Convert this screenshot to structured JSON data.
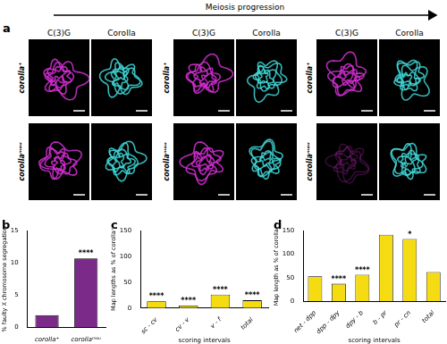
{
  "panel_a": {
    "title": "a",
    "arrow_label": "Meiosis progression",
    "groups": [
      {
        "columns": [
          {
            "label": "C(3)G",
            "color": "#d42fd4"
          },
          {
            "label": "Corolla",
            "color": "#3fd6d6"
          }
        ],
        "rows": [
          "corolla⁺",
          "corollaᵐᵃᵘ"
        ]
      },
      {
        "columns": [
          {
            "label": "C(3)G",
            "color": "#d42fd4"
          },
          {
            "label": "Corolla",
            "color": "#3fd6d6"
          }
        ],
        "rows": [
          "corolla⁺",
          "corollaᵐᵃᵘ"
        ]
      },
      {
        "columns": [
          {
            "label": "C(3)G",
            "color": "#d42fd4"
          },
          {
            "label": "Corolla",
            "color": "#3fd6d6"
          }
        ],
        "rows": [
          "corolla⁺",
          "corollaᵐᵃᵘ"
        ]
      }
    ]
  },
  "chart_data": [
    {
      "type": "bar",
      "title": "b",
      "categories": [
        "corolla⁺",
        "corollaᵐᵃᵘ"
      ],
      "values": [
        1.9,
        10.7
      ],
      "color": "#7b2a8a",
      "y_label": "% faulty X chromosome segregation",
      "ylim": [
        0,
        15
      ],
      "yticks": [
        0,
        5,
        10,
        15
      ],
      "annotations": [
        null,
        "****"
      ],
      "grid": false
    },
    {
      "type": "bar",
      "title": "c",
      "categories": [
        "sc - cv",
        "cv - v",
        "v - f",
        "total"
      ],
      "values": [
        13,
        5,
        26,
        15
      ],
      "color": "#f5dc12",
      "y_label": "Map lengths as % of corolla⁺",
      "x_label": "scoring intervals",
      "ylim": [
        0,
        150
      ],
      "yticks": [
        0,
        50,
        100,
        150
      ],
      "annotations": [
        "****",
        "****",
        "****",
        "****"
      ],
      "grid": false
    },
    {
      "type": "bar",
      "title": "d",
      "categories": [
        "net - dpp",
        "dpp - dpy",
        "dpy - b",
        "b - pr",
        "pr - cn",
        "total"
      ],
      "values": [
        53,
        37,
        56,
        141,
        132,
        62
      ],
      "color": "#f5dc12",
      "y_label": "Map length as % of corolla⁺",
      "x_label": "scoring intervals",
      "ylim": [
        0,
        150
      ],
      "yticks": [
        0,
        50,
        100,
        150
      ],
      "annotations": [
        null,
        "****",
        "****",
        null,
        "*",
        null
      ],
      "grid": false
    }
  ]
}
